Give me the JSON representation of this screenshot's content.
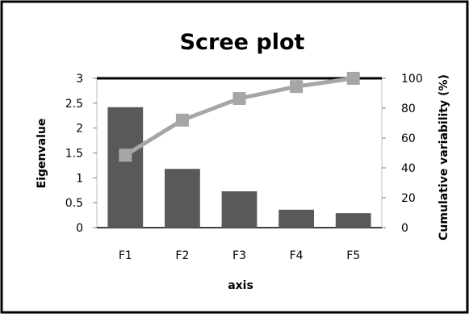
{
  "chart_data": {
    "type": "bar",
    "title": "Scree plot",
    "categories": [
      "F1",
      "F2",
      "F3",
      "F4",
      "F5"
    ],
    "xlabel": "axis",
    "ylabel": "Eigenvalue",
    "y2label": "Cumulative variability (%)",
    "ylim": [
      0,
      3
    ],
    "y2lim": [
      0,
      100
    ],
    "yticks": [
      "0",
      "0.5",
      "1",
      "1.5",
      "2",
      "2.5",
      "3"
    ],
    "y2ticks": [
      "0",
      "20",
      "40",
      "60",
      "80",
      "100"
    ],
    "series": [
      {
        "type": "bar",
        "axis": "left",
        "values": [
          2.42,
          1.18,
          0.73,
          0.36,
          0.29
        ],
        "color": "#595959"
      },
      {
        "type": "line",
        "axis": "right",
        "values": [
          48.5,
          72,
          86.5,
          94.5,
          100
        ],
        "color": "#a6a6a6"
      }
    ],
    "grid": false,
    "legend": "none"
  }
}
